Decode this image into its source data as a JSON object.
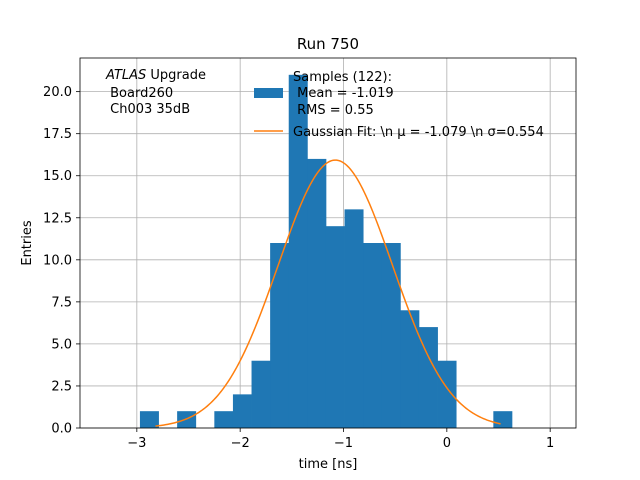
{
  "chart_data": {
    "type": "bar",
    "title": "Run 750",
    "xlabel": "time [ns]",
    "ylabel": "Entries",
    "xlim": [
      -3.55,
      1.25
    ],
    "ylim": [
      0,
      22
    ],
    "grid": true,
    "x_ticks": [
      -3,
      -2,
      -1,
      0,
      1
    ],
    "x_tick_labels": [
      "−3",
      "−2",
      "−1",
      "0",
      "1"
    ],
    "y_ticks": [
      0,
      2.5,
      5,
      7.5,
      10,
      12.5,
      15,
      17.5,
      20
    ],
    "y_tick_labels": [
      "0.0",
      "2.5",
      "5.0",
      "7.5",
      "10.0",
      "12.5",
      "15.0",
      "17.5",
      "20.0"
    ],
    "histogram": {
      "color": "#1f77b4",
      "bin_edges": [
        -2.97,
        -2.79,
        -2.61,
        -2.43,
        -2.25,
        -2.07,
        -1.89,
        -1.71,
        -1.53,
        -1.35,
        -1.17,
        -0.99,
        -0.81,
        -0.63,
        -0.45,
        -0.27,
        -0.09,
        0.09,
        0.27,
        0.45,
        0.63
      ],
      "counts": [
        1,
        0,
        1,
        0,
        1,
        2,
        4,
        11,
        21,
        16,
        12,
        13,
        11,
        11,
        7,
        6,
        4,
        0,
        0,
        1
      ]
    },
    "gaussian_fit": {
      "color": "#ff7f0e",
      "mu": -1.079,
      "sigma": 0.554,
      "amplitude": 15.93,
      "x_range": [
        -2.82,
        0.52
      ]
    },
    "legend": {
      "placement": "top-center",
      "entries": [
        {
          "kind": "patch",
          "color": "#1f77b4",
          "lines": [
            "Samples (122):",
            " Mean = -1.019",
            " RMS = 0.55"
          ]
        },
        {
          "kind": "line",
          "color": "#ff7f0e",
          "lines": [
            "Gaussian Fit: \\n μ = -1.079 \\n σ=0.554"
          ]
        }
      ]
    },
    "annotation": {
      "italic_part": "ATLAS",
      "rest": " Upgrade",
      "line2": " Board260",
      "line3": " Ch003 35dB"
    }
  }
}
